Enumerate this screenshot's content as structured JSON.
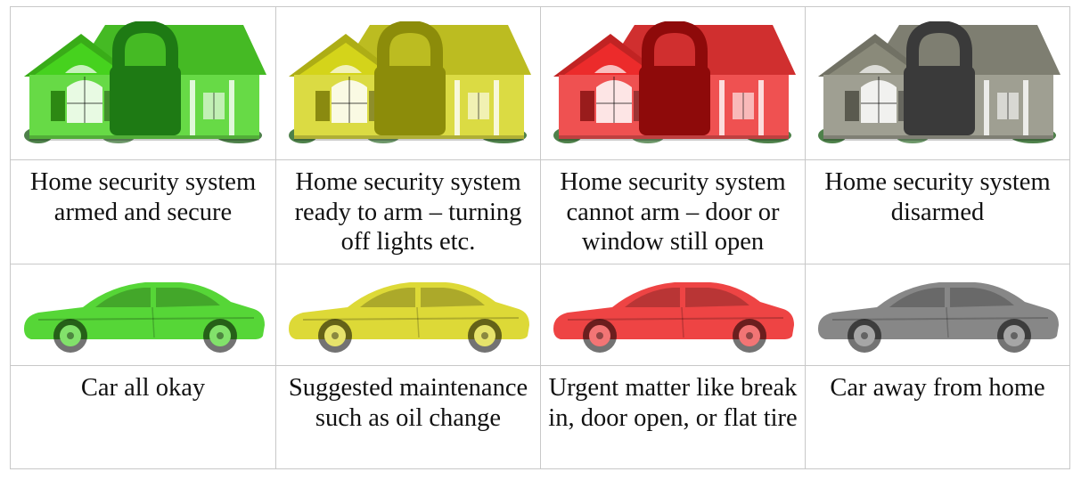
{
  "colors": {
    "armed": "#46d21e",
    "ready": "#d4d41a",
    "alert": "#ec2b2b",
    "away": "#6f6f6f"
  },
  "homes": [
    {
      "icon": "house-with-padlock-icon",
      "color": "#46d21e",
      "lock": "#1e7a14",
      "caption": "Home security system armed and secure"
    },
    {
      "icon": "house-with-padlock-icon",
      "color": "#d4d41a",
      "lock": "#8c8c0a",
      "caption": "Home security system ready to arm – turning off lights etc."
    },
    {
      "icon": "house-with-padlock-icon",
      "color": "#ec2b2b",
      "lock": "#8e0a0a",
      "caption": "Home security system cannot arm – door or window still open"
    },
    {
      "icon": "house-with-padlock-icon",
      "color": "#8a8a7a",
      "lock": "#3a3a3a",
      "caption": "Home security system disarmed"
    }
  ],
  "cars": [
    {
      "icon": "car-icon",
      "color": "#3fd11c",
      "caption": "Car all okay"
    },
    {
      "icon": "car-icon",
      "color": "#d9d41c",
      "caption": "Suggested maintenance such as oil change"
    },
    {
      "icon": "car-icon",
      "color": "#ec2b2b",
      "caption": "Urgent matter like break in, door open, or flat tire"
    },
    {
      "icon": "car-icon",
      "color": "#777777",
      "caption": "Car away from home"
    }
  ]
}
